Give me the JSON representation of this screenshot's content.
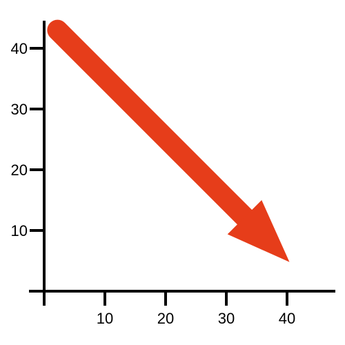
{
  "chart_data": {
    "type": "line",
    "title": "",
    "xlabel": "",
    "ylabel": "",
    "x_ticks": [
      "10",
      "20",
      "30",
      "40"
    ],
    "y_ticks": [
      "10",
      "20",
      "30",
      "40"
    ],
    "xlim": [
      0,
      48
    ],
    "ylim": [
      0,
      48
    ],
    "grid": false,
    "legend": "none",
    "series": [
      {
        "style": "thick-arrow",
        "points": [
          {
            "x": 2.2,
            "y": 43.0
          },
          {
            "x": 40.4,
            "y": 4.8
          }
        ]
      }
    ],
    "colors": {
      "axes": "#000000",
      "arrow": "#e63d1a"
    }
  }
}
